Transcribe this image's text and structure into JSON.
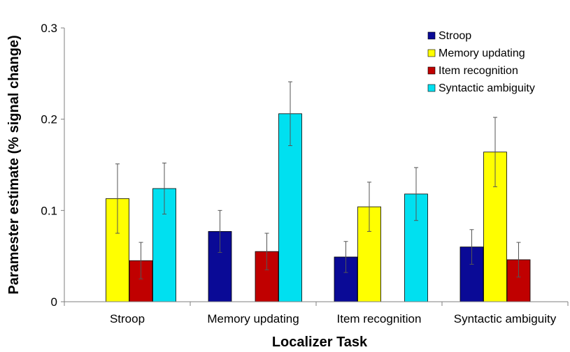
{
  "chart_data": {
    "type": "bar",
    "title": "",
    "xlabel": "Localizer Task",
    "ylabel": "Paramester estimate (% signal change)",
    "ylim": [
      0,
      0.3
    ],
    "yticks": [
      "0",
      "0.1",
      "0.2",
      "0.3"
    ],
    "ytick_values": [
      0,
      0.1,
      0.2,
      0.3
    ],
    "grid": false,
    "legend_position": "top-right",
    "categories": [
      "Stroop",
      "Memory updating",
      "Item recognition",
      "Syntactic ambiguity"
    ],
    "series": [
      {
        "name": "Stroop",
        "color": "#0a0a96",
        "values": [
          null,
          0.077,
          0.049,
          0.06
        ],
        "errors": [
          null,
          0.023,
          0.017,
          0.019
        ]
      },
      {
        "name": "Memory updating",
        "color": "#ffff00",
        "values": [
          0.113,
          null,
          0.104,
          0.164
        ],
        "errors": [
          0.038,
          null,
          0.027,
          0.038
        ]
      },
      {
        "name": "Item recognition",
        "color": "#c00000",
        "values": [
          0.045,
          0.055,
          null,
          0.046
        ],
        "errors": [
          0.02,
          0.02,
          null,
          0.019
        ]
      },
      {
        "name": "Syntactic ambiguity",
        "color": "#00e0f0",
        "values": [
          0.124,
          0.206,
          0.118,
          null
        ],
        "errors": [
          0.028,
          0.035,
          0.029,
          null
        ]
      }
    ]
  }
}
